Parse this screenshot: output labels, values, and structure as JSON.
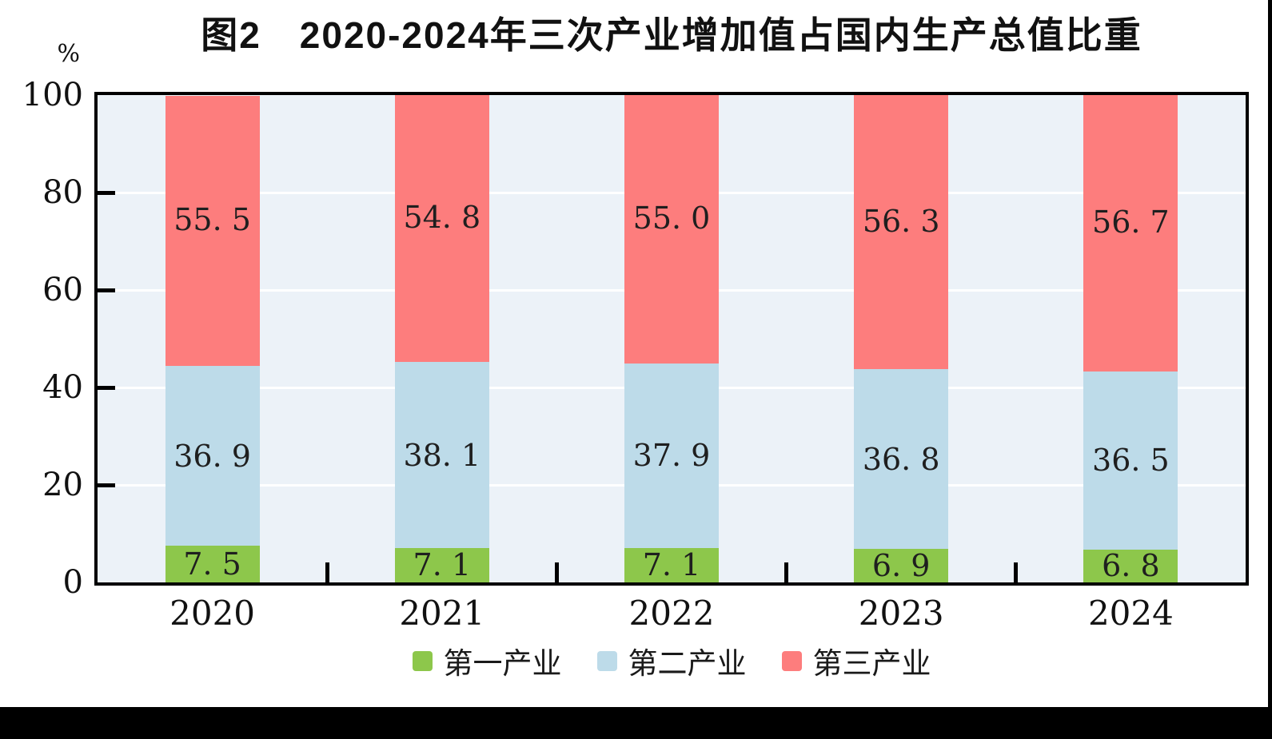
{
  "title": "图2　2020-2024年三次产业增加值占国内生产总值比重",
  "y_axis": {
    "unit": "%",
    "ticks": [
      "100",
      "80",
      "60",
      "40",
      "20",
      "0"
    ]
  },
  "x_axis": {
    "categories": [
      "2020",
      "2021",
      "2022",
      "2023",
      "2024"
    ]
  },
  "legend": [
    {
      "label": "第一产业",
      "color": "#8DC74B"
    },
    {
      "label": "第二产业",
      "color": "#BDDBE9"
    },
    {
      "label": "第三产业",
      "color": "#FD7D7D"
    }
  ],
  "colors": {
    "plot_background": "#ECF2F8",
    "grid_line": "#FFFFFF",
    "axis_border": "#000000",
    "text": "#111111"
  },
  "chart_data": {
    "type": "bar",
    "stacked": true,
    "title": "图2　2020-2024年三次产业增加值占国内生产总值比重",
    "xlabel": "",
    "ylabel": "%",
    "ylim": [
      0,
      100
    ],
    "grid": true,
    "grid_values": [
      20,
      40,
      60,
      80
    ],
    "legend_position": "bottom",
    "categories": [
      "2020",
      "2021",
      "2022",
      "2023",
      "2024"
    ],
    "series": [
      {
        "name": "第一产业",
        "color": "#8DC74B",
        "values": [
          7.5,
          7.1,
          7.1,
          6.9,
          6.8
        ],
        "labels": [
          "7. 5",
          "7. 1",
          "7. 1",
          "6. 9",
          "6. 8"
        ]
      },
      {
        "name": "第二产业",
        "color": "#BDDBE9",
        "values": [
          36.9,
          38.1,
          37.9,
          36.8,
          36.5
        ],
        "labels": [
          "36. 9",
          "38. 1",
          "37. 9",
          "36. 8",
          "36. 5"
        ]
      },
      {
        "name": "第三产业",
        "color": "#FD7D7D",
        "values": [
          55.5,
          54.8,
          55.0,
          56.3,
          56.7
        ],
        "labels": [
          "55. 5",
          "54. 8",
          "55. 0",
          "56. 3",
          "56. 7"
        ]
      }
    ]
  }
}
